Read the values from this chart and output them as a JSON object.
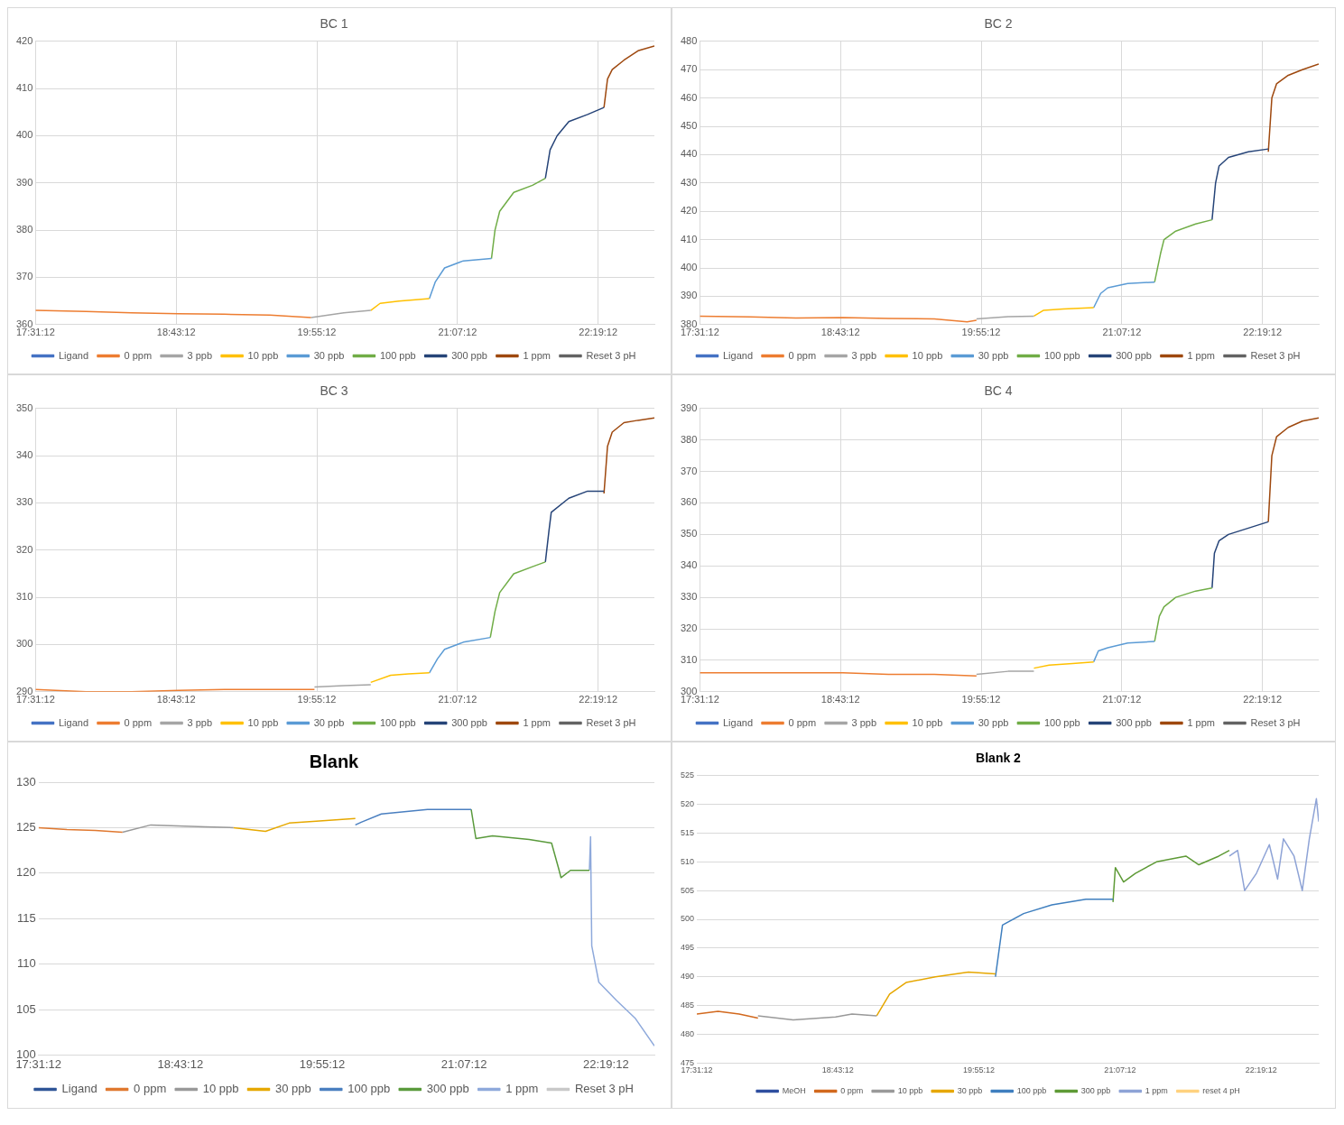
{
  "chart_data": [
    {
      "type": "line",
      "title": "BC 1",
      "xlim": [
        17.52,
        22.8
      ],
      "xticks": [
        {
          "value": 17.52,
          "label": "17:31:12"
        },
        {
          "value": 18.72,
          "label": "18:43:12"
        },
        {
          "value": 19.92,
          "label": "19:55:12"
        },
        {
          "value": 21.12,
          "label": "21:07:12"
        },
        {
          "value": 22.32,
          "label": "22:19:12"
        }
      ],
      "ylim": [
        360,
        420
      ],
      "yticks": [
        360,
        370,
        380,
        390,
        400,
        410,
        420
      ],
      "grid": true,
      "legend": "bottom",
      "marker": "none",
      "line_style": "solid",
      "series": [
        {
          "name": "Ligand",
          "color": "#4472c4"
        },
        {
          "name": "0 ppm",
          "color": "#ed7d31",
          "x": [
            17.52,
            17.95,
            18.34,
            18.74,
            19.13,
            19.52,
            19.87
          ],
          "values": [
            363,
            362.8,
            362.5,
            362.3,
            362.2,
            362,
            361.5
          ]
        },
        {
          "name": "3 ppb",
          "color": "#a5a5a5",
          "x": [
            19.87,
            20.15,
            20.38
          ],
          "values": [
            361.5,
            362.5,
            363
          ]
        },
        {
          "name": "10 ppb",
          "color": "#ffc000",
          "x": [
            20.38,
            20.46,
            20.62,
            20.88
          ],
          "values": [
            363,
            364.5,
            365,
            365.5
          ]
        },
        {
          "name": "30 ppb",
          "color": "#5b9bd5",
          "x": [
            20.88,
            20.93,
            21.01,
            21.17,
            21.41
          ],
          "values": [
            365.5,
            369,
            372,
            373.5,
            374
          ]
        },
        {
          "name": "100 ppb",
          "color": "#70ad47",
          "x": [
            21.41,
            21.44,
            21.48,
            21.6,
            21.76,
            21.87
          ],
          "values": [
            374,
            380,
            384,
            388,
            389.5,
            391
          ]
        },
        {
          "name": "300 ppb",
          "color": "#264478",
          "x": [
            21.87,
            21.91,
            21.97,
            22.07,
            22.23,
            22.37
          ],
          "values": [
            391,
            397,
            400,
            403,
            404.5,
            406
          ]
        },
        {
          "name": "1 ppm",
          "color": "#9e480e",
          "x": [
            22.37,
            22.4,
            22.44,
            22.54,
            22.66,
            22.8
          ],
          "values": [
            406,
            412,
            414,
            416,
            418,
            419
          ]
        },
        {
          "name": "Reset 3 pH",
          "color": "#636363"
        }
      ]
    },
    {
      "type": "line",
      "title": "BC 2",
      "xlim": [
        17.52,
        22.8
      ],
      "xticks": [
        {
          "value": 17.52,
          "label": "17:31:12"
        },
        {
          "value": 18.72,
          "label": "18:43:12"
        },
        {
          "value": 19.92,
          "label": "19:55:12"
        },
        {
          "value": 21.12,
          "label": "21:07:12"
        },
        {
          "value": 22.32,
          "label": "22:19:12"
        }
      ],
      "ylim": [
        380,
        480
      ],
      "yticks": [
        380,
        390,
        400,
        410,
        420,
        430,
        440,
        450,
        460,
        470,
        480
      ],
      "grid": true,
      "legend": "bottom",
      "marker": "none",
      "line_style": "solid",
      "series": [
        {
          "name": "Ligand",
          "color": "#4472c4"
        },
        {
          "name": "0 ppm",
          "color": "#ed7d31",
          "x": [
            17.52,
            17.95,
            18.34,
            18.74,
            19.13,
            19.52,
            19.8,
            19.88
          ],
          "values": [
            383,
            382.7,
            382.3,
            382.5,
            382.2,
            382,
            381,
            381.5
          ]
        },
        {
          "name": "3 ppb",
          "color": "#a5a5a5",
          "x": [
            19.88,
            20.15,
            20.37
          ],
          "values": [
            382,
            382.8,
            383
          ]
        },
        {
          "name": "10 ppb",
          "color": "#ffc000",
          "x": [
            20.37,
            20.45,
            20.62,
            20.88
          ],
          "values": [
            383,
            385,
            385.5,
            386
          ]
        },
        {
          "name": "30 ppb",
          "color": "#5b9bd5",
          "x": [
            20.88,
            20.94,
            21.0,
            21.17,
            21.4
          ],
          "values": [
            386,
            391,
            393,
            394.5,
            395
          ]
        },
        {
          "name": "100 ppb",
          "color": "#70ad47",
          "x": [
            21.4,
            21.45,
            21.48,
            21.58,
            21.75,
            21.89
          ],
          "values": [
            395,
            405,
            410,
            413,
            415.5,
            417
          ]
        },
        {
          "name": "300 ppb",
          "color": "#264478",
          "x": [
            21.89,
            21.92,
            21.95,
            22.03,
            22.2,
            22.37
          ],
          "values": [
            417,
            430,
            436,
            439,
            441,
            442
          ]
        },
        {
          "name": "1 ppm",
          "color": "#9e480e",
          "x": [
            22.37,
            22.4,
            22.44,
            22.54,
            22.66,
            22.8
          ],
          "values": [
            441,
            460,
            465,
            468,
            470,
            472
          ]
        },
        {
          "name": "Reset 3 pH",
          "color": "#636363"
        }
      ]
    },
    {
      "type": "line",
      "title": "BC 3",
      "xlim": [
        17.52,
        22.8
      ],
      "xticks": [
        {
          "value": 17.52,
          "label": "17:31:12"
        },
        {
          "value": 18.72,
          "label": "18:43:12"
        },
        {
          "value": 19.92,
          "label": "19:55:12"
        },
        {
          "value": 21.12,
          "label": "21:07:12"
        },
        {
          "value": 22.32,
          "label": "22:19:12"
        }
      ],
      "ylim": [
        290,
        350
      ],
      "yticks": [
        290,
        300,
        310,
        320,
        330,
        340,
        350
      ],
      "grid": true,
      "legend": "bottom",
      "marker": "none",
      "line_style": "solid",
      "series": [
        {
          "name": "Ligand",
          "color": "#4472c4"
        },
        {
          "name": "0 ppm",
          "color": "#ed7d31",
          "x": [
            17.52,
            17.95,
            18.34,
            18.74,
            19.13,
            19.52,
            19.9
          ],
          "values": [
            290.5,
            290,
            290,
            290.3,
            290.5,
            290.5,
            290.5
          ]
        },
        {
          "name": "3 ppb",
          "color": "#a5a5a5",
          "x": [
            19.9,
            20.15,
            20.38
          ],
          "values": [
            291,
            291.3,
            291.5
          ]
        },
        {
          "name": "10 ppb",
          "color": "#ffc000",
          "x": [
            20.38,
            20.55,
            20.7,
            20.88
          ],
          "values": [
            292,
            293.5,
            293.8,
            294
          ]
        },
        {
          "name": "30 ppb",
          "color": "#5b9bd5",
          "x": [
            20.88,
            20.95,
            21.01,
            21.17,
            21.4
          ],
          "values": [
            294,
            297,
            299,
            300.5,
            301.5
          ]
        },
        {
          "name": "100 ppb",
          "color": "#70ad47",
          "x": [
            21.4,
            21.44,
            21.48,
            21.6,
            21.76,
            21.87
          ],
          "values": [
            301.5,
            307,
            311,
            315,
            316.5,
            317.5
          ]
        },
        {
          "name": "300 ppb",
          "color": "#264478",
          "x": [
            21.87,
            21.9,
            21.92,
            22.07,
            22.23,
            22.37
          ],
          "values": [
            317.5,
            324,
            328,
            331,
            332.5,
            332.5
          ]
        },
        {
          "name": "1 ppm",
          "color": "#9e480e",
          "x": [
            22.37,
            22.4,
            22.44,
            22.54,
            22.66,
            22.8
          ],
          "values": [
            332,
            342,
            345,
            347,
            347.5,
            348
          ]
        },
        {
          "name": "Reset 3 pH",
          "color": "#636363"
        }
      ]
    },
    {
      "type": "line",
      "title": "BC 4",
      "xlim": [
        17.52,
        22.8
      ],
      "xticks": [
        {
          "value": 17.52,
          "label": "17:31:12"
        },
        {
          "value": 18.72,
          "label": "18:43:12"
        },
        {
          "value": 19.92,
          "label": "19:55:12"
        },
        {
          "value": 21.12,
          "label": "21:07:12"
        },
        {
          "value": 22.32,
          "label": "22:19:12"
        }
      ],
      "ylim": [
        300,
        390
      ],
      "yticks": [
        300,
        310,
        320,
        330,
        340,
        350,
        360,
        370,
        380,
        390
      ],
      "grid": true,
      "legend": "bottom",
      "marker": "none",
      "line_style": "solid",
      "series": [
        {
          "name": "Ligand",
          "color": "#4472c4"
        },
        {
          "name": "0 ppm",
          "color": "#ed7d31",
          "x": [
            17.52,
            17.95,
            18.34,
            18.74,
            19.13,
            19.52,
            19.88
          ],
          "values": [
            306,
            306,
            306,
            306,
            305.5,
            305.5,
            305
          ]
        },
        {
          "name": "3 ppb",
          "color": "#a5a5a5",
          "x": [
            19.88,
            20.15,
            20.37
          ],
          "values": [
            305.5,
            306.5,
            306.5
          ]
        },
        {
          "name": "10 ppb",
          "color": "#ffc000",
          "x": [
            20.37,
            20.5,
            20.7,
            20.88
          ],
          "values": [
            307.5,
            308.5,
            309,
            309.5
          ]
        },
        {
          "name": "30 ppb",
          "color": "#5b9bd5",
          "x": [
            20.88,
            20.92,
            21.0,
            21.17,
            21.4
          ],
          "values": [
            309.5,
            313,
            314,
            315.5,
            316
          ]
        },
        {
          "name": "100 ppb",
          "color": "#70ad47",
          "x": [
            21.4,
            21.44,
            21.48,
            21.58,
            21.75,
            21.89
          ],
          "values": [
            316,
            324,
            327,
            330,
            332,
            333
          ]
        },
        {
          "name": "300 ppb",
          "color": "#264478",
          "x": [
            21.89,
            21.91,
            21.95,
            22.03,
            22.2,
            22.37
          ],
          "values": [
            333,
            344,
            348,
            350,
            352,
            354
          ]
        },
        {
          "name": "1 ppm",
          "color": "#9e480e",
          "x": [
            22.37,
            22.4,
            22.44,
            22.54,
            22.66,
            22.8
          ],
          "values": [
            354,
            375,
            381,
            384,
            386,
            387
          ]
        },
        {
          "name": "Reset 3 pH",
          "color": "#636363"
        }
      ]
    },
    {
      "type": "line",
      "title": "Blank",
      "xlim": [
        17.52,
        22.73
      ],
      "xticks": [
        {
          "value": 17.52,
          "label": "17:31:12"
        },
        {
          "value": 18.72,
          "label": "18:43:12"
        },
        {
          "value": 19.92,
          "label": "19:55:12"
        },
        {
          "value": 21.12,
          "label": "21:07:12"
        },
        {
          "value": 22.32,
          "label": "22:19:12"
        }
      ],
      "ylim": [
        100,
        130
      ],
      "yticks": [
        100,
        105,
        110,
        115,
        120,
        125,
        130
      ],
      "grid": "y",
      "legend": "bottom",
      "marker": "none",
      "line_style": "solid",
      "series": [
        {
          "name": "Ligand",
          "color": "#2f5597"
        },
        {
          "name": "0 ppm",
          "color": "#e0782f",
          "x": [
            17.52,
            17.76,
            18.0,
            18.23
          ],
          "values": [
            125,
            124.8,
            124.7,
            124.5
          ]
        },
        {
          "name": "10 ppb",
          "color": "#999999",
          "x": [
            18.23,
            18.47,
            18.7,
            18.93,
            19.17
          ],
          "values": [
            124.5,
            125.3,
            125.2,
            125.1,
            125
          ]
        },
        {
          "name": "30 ppb",
          "color": "#e6a800",
          "x": [
            19.17,
            19.44,
            19.64,
            19.87,
            20.2
          ],
          "values": [
            125,
            124.6,
            125.5,
            125.7,
            126
          ]
        },
        {
          "name": "100 ppb",
          "color": "#4a7fc0",
          "x": [
            20.2,
            20.25,
            20.42,
            20.81,
            21.18
          ],
          "values": [
            125.3,
            125.6,
            126.5,
            127,
            127
          ]
        },
        {
          "name": "300 ppb",
          "color": "#5a9a3c",
          "x": [
            21.18,
            21.22,
            21.36,
            21.67,
            21.86,
            21.92,
            21.94,
            22.02,
            22.18
          ],
          "values": [
            127,
            123.8,
            124.1,
            123.7,
            123.3,
            120.5,
            119.5,
            120.3,
            120.3
          ]
        },
        {
          "name": "1 ppm",
          "color": "#8ea9db",
          "x": [
            22.18,
            22.19,
            22.2,
            22.26,
            22.41,
            22.57,
            22.73
          ],
          "values": [
            120.3,
            124,
            112,
            108,
            106,
            104,
            101
          ]
        },
        {
          "name": "Reset 3 pH",
          "color": "#c8c8c8"
        }
      ]
    },
    {
      "type": "line",
      "title": "Blank 2",
      "xlim": [
        17.52,
        22.81
      ],
      "xticks": [
        {
          "value": 17.52,
          "label": "17:31:12"
        },
        {
          "value": 18.72,
          "label": "18:43:12"
        },
        {
          "value": 19.92,
          "label": "19:55:12"
        },
        {
          "value": 21.12,
          "label": "21:07:12"
        },
        {
          "value": 22.32,
          "label": "22:19:12"
        }
      ],
      "ylim": [
        475,
        525
      ],
      "yticks": [
        475,
        480,
        485,
        490,
        495,
        500,
        505,
        510,
        515,
        520,
        525
      ],
      "grid": "y",
      "legend": "bottom",
      "marker": "none",
      "line_style": "solid",
      "series": [
        {
          "name": "MeOH",
          "color": "#2f4f9f"
        },
        {
          "name": "0 ppm",
          "color": "#d2691e",
          "x": [
            17.52,
            17.7,
            17.88,
            18.04
          ],
          "values": [
            483.5,
            484,
            483.5,
            482.8
          ]
        },
        {
          "name": "10 ppb",
          "color": "#999999",
          "x": [
            18.04,
            18.34,
            18.7,
            18.84,
            19.05
          ],
          "values": [
            483.2,
            482.5,
            483,
            483.5,
            483.2
          ]
        },
        {
          "name": "30 ppb",
          "color": "#e6a700",
          "x": [
            19.05,
            19.16,
            19.3,
            19.55,
            19.83,
            20.06
          ],
          "values": [
            483.2,
            487,
            489,
            490,
            490.8,
            490.5
          ]
        },
        {
          "name": "100 ppb",
          "color": "#3f7fbf",
          "x": [
            20.06,
            20.12,
            20.3,
            20.54,
            20.83,
            21.06
          ],
          "values": [
            490,
            499,
            501,
            502.5,
            503.5,
            503.5
          ]
        },
        {
          "name": "300 ppb",
          "color": "#5e9a36",
          "x": [
            21.06,
            21.08,
            21.15,
            21.25,
            21.43,
            21.68,
            21.79,
            21.96,
            22.05
          ],
          "values": [
            503,
            509,
            506.5,
            508,
            510,
            511,
            509.5,
            511,
            512
          ]
        },
        {
          "name": "1 ppm",
          "color": "#8ea3d6",
          "x": [
            22.05,
            22.12,
            22.18,
            22.28,
            22.39,
            22.46,
            22.51,
            22.6,
            22.67,
            22.73,
            22.79,
            22.81
          ],
          "values": [
            511,
            512,
            505,
            508,
            513,
            507,
            514,
            511,
            505,
            514,
            521,
            517
          ]
        },
        {
          "name": "reset 4 pH",
          "color": "#ffd27f"
        }
      ]
    }
  ]
}
